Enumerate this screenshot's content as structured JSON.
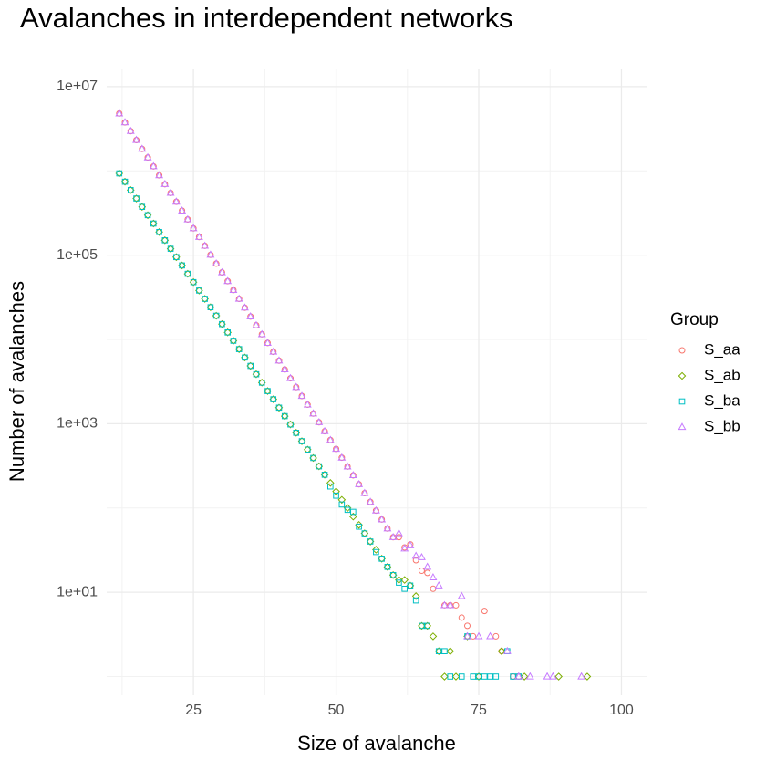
{
  "chart_data": {
    "type": "scatter",
    "title": "Avalanches in interdependent networks",
    "x_label": "Size of avalanche",
    "y_label": "Number of avalanches",
    "legend_title": "Group",
    "legend_position": "right",
    "log_y": true,
    "grid": true,
    "xlim": [
      9.8,
      104.4
    ],
    "xticks": [
      25,
      50,
      75,
      100
    ],
    "x_minor_ticks": [
      12.5,
      37.5,
      62.5,
      87.5
    ],
    "ylim": [
      0.6,
      16000000
    ],
    "yticks": [
      {
        "value": 10,
        "label": "1e+01"
      },
      {
        "value": 1000,
        "label": "1e+03"
      },
      {
        "value": 100000,
        "label": "1e+05"
      },
      {
        "value": 10000000,
        "label": "1e+07"
      }
    ],
    "y_minor_ticks": [
      1,
      100,
      10000,
      1000000
    ],
    "series": [
      {
        "name": "S_aa",
        "color": "#F8766D",
        "shape": "circle",
        "x": [
          12,
          13,
          14,
          15,
          16,
          17,
          18,
          19,
          20,
          21,
          22,
          23,
          24,
          25,
          26,
          27,
          28,
          29,
          30,
          31,
          32,
          33,
          34,
          35,
          36,
          37,
          38,
          39,
          40,
          41,
          42,
          43,
          44,
          45,
          46,
          47,
          48,
          49,
          50,
          51,
          52,
          53,
          54,
          55,
          56,
          57,
          58,
          59,
          60,
          61,
          62,
          63,
          64,
          65,
          66,
          67,
          69,
          70,
          71,
          72,
          73,
          74,
          76,
          78,
          79,
          81,
          82
        ],
        "values": [
          4790000,
          3760000,
          2960000,
          2320000,
          1820000,
          1440000,
          1130000,
          885000,
          695000,
          547000,
          430000,
          337000,
          265000,
          208000,
          164000,
          129000,
          101000,
          79400,
          62400,
          49100,
          38500,
          30300,
          23800,
          18700,
          14700,
          11500,
          9080,
          7130,
          5600,
          4400,
          3460,
          2720,
          2130,
          1680,
          1320,
          1040,
          813,
          640,
          502,
          395,
          310,
          244,
          191,
          150,
          118,
          93,
          73,
          57,
          45,
          45,
          34,
          37,
          24,
          18,
          17,
          11,
          7,
          7,
          7,
          5,
          4,
          3,
          6,
          3,
          2,
          1,
          1
        ]
      },
      {
        "name": "S_ab",
        "color": "#7CAE00",
        "shape": "diamond",
        "x": [
          12,
          13,
          14,
          15,
          16,
          17,
          18,
          19,
          20,
          21,
          22,
          23,
          24,
          25,
          26,
          27,
          28,
          29,
          30,
          31,
          32,
          33,
          34,
          35,
          36,
          37,
          38,
          39,
          40,
          41,
          42,
          43,
          44,
          45,
          46,
          47,
          48,
          49,
          50,
          51,
          52,
          53,
          54,
          55,
          56,
          57,
          58,
          59,
          60,
          61,
          62,
          63,
          64,
          65,
          66,
          67,
          68,
          69,
          70,
          71,
          73,
          75,
          79,
          83,
          89,
          94
        ],
        "values": [
          933000,
          743000,
          591000,
          470000,
          374000,
          298000,
          237000,
          188000,
          150000,
          119000,
          94800,
          75500,
          60000,
          47800,
          38000,
          30300,
          24100,
          19100,
          15200,
          12100,
          9640,
          7670,
          6100,
          4850,
          3860,
          3070,
          2440,
          1950,
          1550,
          1230,
          980,
          780,
          620,
          493,
          392,
          312,
          248,
          198,
          157,
          125,
          100,
          79,
          63,
          50,
          40,
          32,
          25,
          20,
          16,
          14,
          14,
          12,
          9,
          4,
          4,
          3,
          2,
          1,
          2,
          1,
          3,
          1,
          2,
          1,
          1,
          1
        ]
      },
      {
        "name": "S_ba",
        "color": "#00BFC4",
        "shape": "square",
        "x": [
          12,
          13,
          14,
          15,
          16,
          17,
          18,
          19,
          20,
          21,
          22,
          23,
          24,
          25,
          26,
          27,
          28,
          29,
          30,
          31,
          32,
          33,
          34,
          35,
          36,
          37,
          38,
          39,
          40,
          41,
          42,
          43,
          44,
          45,
          46,
          47,
          48,
          49,
          50,
          51,
          52,
          53,
          54,
          55,
          56,
          57,
          58,
          59,
          60,
          61,
          62,
          63,
          64,
          65,
          66,
          68,
          69,
          70,
          72,
          73,
          74,
          75,
          76,
          77,
          78,
          80,
          81,
          82
        ],
        "values": [
          933000,
          743000,
          591000,
          470000,
          374000,
          298000,
          237000,
          188000,
          150000,
          119000,
          94800,
          75500,
          60000,
          47800,
          38000,
          30300,
          24100,
          19100,
          15200,
          12100,
          9640,
          7670,
          6100,
          4850,
          3860,
          3070,
          2440,
          1950,
          1550,
          1230,
          980,
          780,
          620,
          493,
          392,
          312,
          248,
          180,
          140,
          110,
          95,
          90,
          60,
          50,
          40,
          30,
          25,
          20,
          16,
          13,
          11,
          12,
          8,
          4,
          4,
          2,
          2,
          1,
          1,
          3,
          1,
          1,
          1,
          1,
          1,
          2,
          1,
          1
        ]
      },
      {
        "name": "S_bb",
        "color": "#C77CFF",
        "shape": "triangle",
        "x": [
          12,
          13,
          14,
          15,
          16,
          17,
          18,
          19,
          20,
          21,
          22,
          23,
          24,
          25,
          26,
          27,
          28,
          29,
          30,
          31,
          32,
          33,
          34,
          35,
          36,
          37,
          38,
          39,
          40,
          41,
          42,
          43,
          44,
          45,
          46,
          47,
          48,
          49,
          50,
          51,
          52,
          53,
          54,
          55,
          56,
          57,
          58,
          59,
          60,
          61,
          62,
          63,
          64,
          65,
          66,
          67,
          68,
          69,
          70,
          72,
          73,
          75,
          77,
          80,
          82,
          84,
          87,
          88,
          93
        ],
        "values": [
          4790000,
          3760000,
          2960000,
          2320000,
          1820000,
          1440000,
          1130000,
          885000,
          695000,
          547000,
          430000,
          337000,
          265000,
          208000,
          164000,
          129000,
          101000,
          79400,
          62400,
          49100,
          38500,
          30300,
          23800,
          18700,
          14700,
          11500,
          9080,
          7130,
          5600,
          4400,
          3460,
          2720,
          2130,
          1680,
          1320,
          1040,
          813,
          640,
          502,
          395,
          310,
          244,
          191,
          150,
          118,
          93,
          73,
          57,
          45,
          50,
          33,
          36,
          27,
          26,
          20,
          15,
          12,
          7,
          7,
          9,
          3,
          3,
          3,
          2,
          1,
          1,
          1,
          1,
          1
        ]
      }
    ]
  }
}
